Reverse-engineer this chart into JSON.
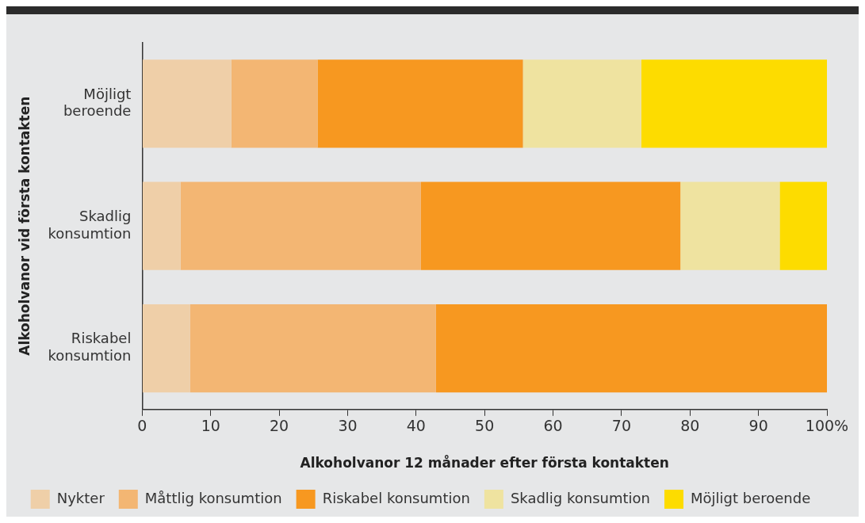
{
  "chart_data": {
    "type": "bar",
    "orientation": "horizontal",
    "stacked": true,
    "xlabel": "Alkoholvanor 12 månader efter första kontakten",
    "ylabel": "Alkoholvanor vid första kontakten",
    "categories": [
      "Möjligt beroende",
      "Skadlig konsumtion",
      "Riskabel konsumtion"
    ],
    "series": [
      {
        "name": "Nykter",
        "color": "#efcfa8",
        "values": [
          13,
          5.6,
          7
        ]
      },
      {
        "name": "Måttlig konsumtion",
        "color": "#f3b673",
        "values": [
          12.6,
          35.1,
          35.9
        ]
      },
      {
        "name": "Riskabel konsumtion",
        "color": "#f79820",
        "values": [
          30,
          37.9,
          57.1
        ]
      },
      {
        "name": "Skadlig konsumtion",
        "color": "#efe3a0",
        "values": [
          17.3,
          14.5,
          0
        ]
      },
      {
        "name": "Möjligt beroende",
        "color": "#fddc00",
        "values": [
          27.1,
          6.9,
          0
        ]
      }
    ],
    "xlim": [
      0,
      100
    ],
    "xticks": [
      0,
      10,
      20,
      30,
      40,
      50,
      60,
      70,
      80,
      90,
      {
        "value": 100,
        "label": "100%"
      }
    ],
    "grid": false,
    "legend": "bottom"
  }
}
